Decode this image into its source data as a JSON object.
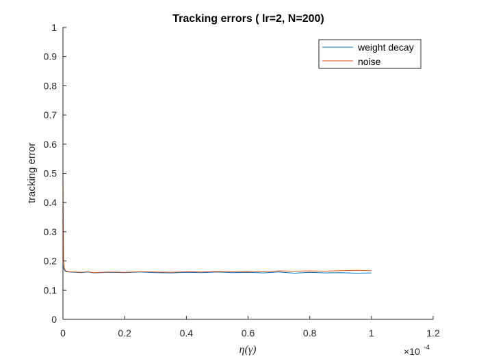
{
  "chart_data": {
    "type": "line",
    "title": "Tracking errors ( lr=2, N=200)",
    "xlabel": "η(γ)",
    "ylabel": "tracking error",
    "x_multiplier": "×10",
    "x_multiplier_exponent": "-4",
    "xlim": [
      0,
      1.2
    ],
    "ylim": [
      0,
      1
    ],
    "xticks": [
      0,
      0.2,
      0.4,
      0.6,
      0.8,
      1,
      1.2
    ],
    "xtick_labels": [
      "0",
      "0.2",
      "0.4",
      "0.6",
      "0.8",
      "1",
      "1.2"
    ],
    "yticks": [
      0,
      0.1,
      0.2,
      0.3,
      0.4,
      0.5,
      0.6,
      0.7,
      0.8,
      0.9,
      1
    ],
    "ytick_labels": [
      "0",
      "0.1",
      "0.2",
      "0.3",
      "0.4",
      "0.5",
      "0.6",
      "0.7",
      "0.8",
      "0.9",
      "1"
    ],
    "grid": false,
    "legend_position": "top-right",
    "series": [
      {
        "name": "weight decay",
        "color": "#0072BD",
        "x": [
          0,
          0.002,
          0.005,
          0.01,
          0.02,
          0.04,
          0.06,
          0.08,
          0.1,
          0.15,
          0.2,
          0.25,
          0.3,
          0.35,
          0.4,
          0.45,
          0.5,
          0.55,
          0.6,
          0.65,
          0.7,
          0.75,
          0.8,
          0.85,
          0.9,
          0.95,
          1.0
        ],
        "y": [
          0.19,
          0.175,
          0.168,
          0.163,
          0.162,
          0.161,
          0.16,
          0.162,
          0.159,
          0.161,
          0.16,
          0.162,
          0.16,
          0.159,
          0.161,
          0.16,
          0.162,
          0.16,
          0.161,
          0.159,
          0.162,
          0.158,
          0.161,
          0.159,
          0.16,
          0.158,
          0.159
        ]
      },
      {
        "name": "noise",
        "color": "#D95319",
        "x": [
          0,
          0.002,
          0.005,
          0.01,
          0.02,
          0.04,
          0.06,
          0.08,
          0.1,
          0.15,
          0.2,
          0.25,
          0.3,
          0.35,
          0.4,
          0.45,
          0.5,
          0.55,
          0.6,
          0.65,
          0.7,
          0.75,
          0.8,
          0.85,
          0.9,
          0.95,
          1.0
        ],
        "y": [
          0.52,
          0.2,
          0.172,
          0.165,
          0.163,
          0.162,
          0.161,
          0.163,
          0.16,
          0.162,
          0.161,
          0.163,
          0.162,
          0.161,
          0.163,
          0.162,
          0.164,
          0.163,
          0.164,
          0.163,
          0.166,
          0.165,
          0.166,
          0.165,
          0.167,
          0.168,
          0.167
        ]
      }
    ]
  }
}
